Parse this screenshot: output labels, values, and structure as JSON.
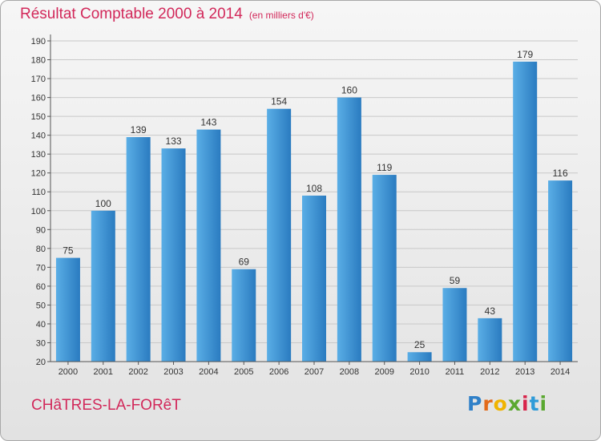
{
  "title": "Résultat Comptable 2000 à 2014",
  "unit": "(en milliers d'€)",
  "commune": "CHâTRES-LA-FORêT",
  "logo": {
    "letters": [
      "P",
      "r",
      "o",
      "x",
      "i",
      "t",
      "i"
    ]
  },
  "colors": {
    "title": "#d2285a",
    "bar_light": "#5aaee6",
    "bar_dark": "#2a7bc0",
    "grid": "#c8c8c8"
  },
  "chart_data": {
    "type": "bar",
    "title": "Résultat Comptable 2000 à 2014",
    "subtitle": "(en milliers d'€)",
    "xlabel": "",
    "ylabel": "",
    "categories": [
      "2000",
      "2001",
      "2002",
      "2003",
      "2004",
      "2005",
      "2006",
      "2007",
      "2008",
      "2009",
      "2010",
      "2011",
      "2012",
      "2013",
      "2014"
    ],
    "values": [
      75,
      100,
      139,
      133,
      143,
      69,
      154,
      108,
      160,
      119,
      25,
      59,
      43,
      179,
      116
    ],
    "ylim": [
      20,
      190
    ],
    "yticks": [
      20,
      30,
      40,
      50,
      60,
      70,
      80,
      90,
      100,
      110,
      120,
      130,
      140,
      150,
      160,
      170,
      180,
      190
    ],
    "grid": true,
    "data_labels": true
  }
}
